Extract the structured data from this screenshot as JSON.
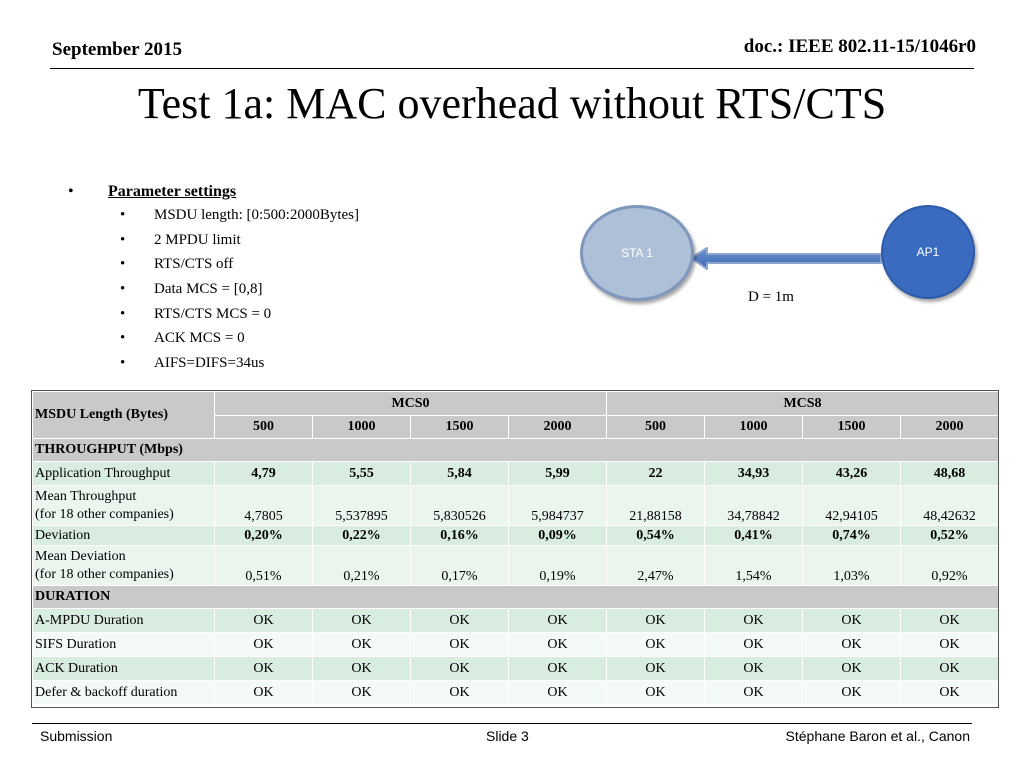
{
  "header": {
    "date": "September 2015",
    "doc": "doc.: IEEE 802.11-15/1046r0"
  },
  "title": "Test 1a: MAC overhead without RTS/CTS",
  "bullets": {
    "heading": "Parameter settings",
    "items": [
      "MSDU length: [0:500:2000Bytes]",
      "2 MPDU limit",
      "RTS/CTS off",
      "Data MCS = [0,8]",
      "RTS/CTS MCS = 0",
      "ACK MCS = 0",
      "AIFS=DIFS=34us"
    ]
  },
  "diagram": {
    "sta_label": "STA 1",
    "ap_label": "AP1",
    "distance": "D = 1m"
  },
  "table": {
    "corner": "MSDU Length (Bytes)",
    "groups": [
      "MCS0",
      "MCS8"
    ],
    "lengths": [
      "500",
      "1000",
      "1500",
      "2000",
      "500",
      "1000",
      "1500",
      "2000"
    ],
    "section_throughput": "THROUGHPUT (Mbps)",
    "section_duration": "DURATION",
    "rows": {
      "app": {
        "label": "Application Throughput",
        "values": [
          "4,79",
          "5,55",
          "5,84",
          "5,99",
          "22",
          "34,93",
          "43,26",
          "48,68"
        ]
      },
      "mean": {
        "label1": "Mean Throughput",
        "label2": "(for 18 other companies)",
        "values": [
          "4,7805",
          "5,537895",
          "5,830526",
          "5,984737",
          "21,88158",
          "34,78842",
          "42,94105",
          "48,42632"
        ]
      },
      "dev": {
        "label": "Deviation",
        "values": [
          "0,20%",
          "0,22%",
          "0,16%",
          "0,09%",
          "0,54%",
          "0,41%",
          "0,74%",
          "0,52%"
        ]
      },
      "meandev": {
        "label1": "Mean Deviation",
        "label2": "(for 18 other companies)",
        "values": [
          "0,51%",
          "0,21%",
          "0,17%",
          "0,19%",
          "2,47%",
          "1,54%",
          "1,03%",
          "0,92%"
        ]
      },
      "ampdu": {
        "label": "A-MPDU Duration",
        "values": [
          "OK",
          "OK",
          "OK",
          "OK",
          "OK",
          "OK",
          "OK",
          "OK"
        ]
      },
      "sifs": {
        "label": "SIFS Duration",
        "values": [
          "OK",
          "OK",
          "OK",
          "OK",
          "OK",
          "OK",
          "OK",
          "OK"
        ]
      },
      "ack": {
        "label": "ACK Duration",
        "values": [
          "OK",
          "OK",
          "OK",
          "OK",
          "OK",
          "OK",
          "OK",
          "OK"
        ]
      },
      "defer": {
        "label": "Defer & backoff duration",
        "values": [
          "OK",
          "OK",
          "OK",
          "OK",
          "OK",
          "OK",
          "OK",
          "OK"
        ]
      }
    }
  },
  "footer": {
    "left": "Submission",
    "center": "Slide 3",
    "right": "Stéphane Baron et al., Canon"
  }
}
